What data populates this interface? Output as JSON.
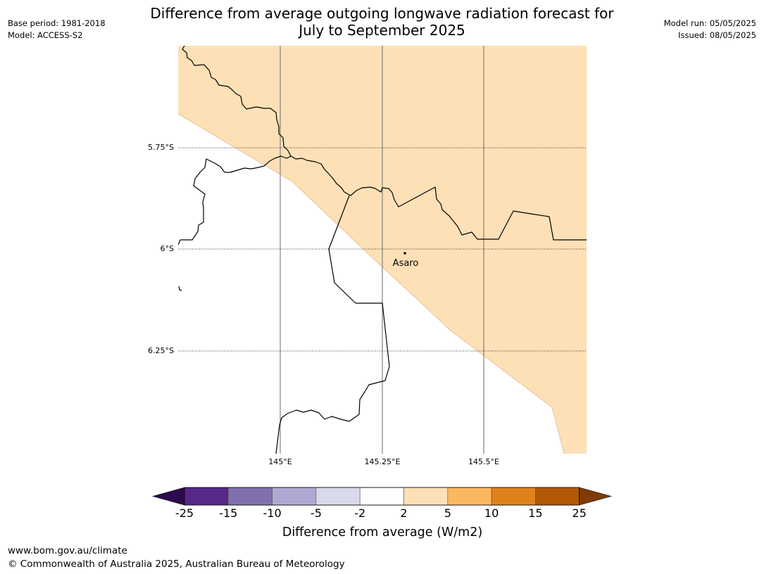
{
  "title": {
    "line1": "Difference from average outgoing longwave radiation forecast for",
    "line2": "July to September 2025"
  },
  "meta_left": {
    "base_period": "Base period: 1981-2018",
    "model": "Model: ACCESS-S2"
  },
  "meta_right": {
    "model_run": "Model run: 05/05/2025",
    "issued": "Issued: 08/05/2025"
  },
  "map": {
    "lat_labels": [
      "5.75°S",
      "6°S",
      "6.25°S"
    ],
    "lon_labels": [
      "145°E",
      "145.25°E",
      "145.5°E"
    ],
    "place": {
      "name": "Asaro"
    },
    "shade_category": "2 to 5",
    "colors": {
      "shade": "#fde0b6",
      "boundary": "#000000",
      "meridian": "#808080"
    }
  },
  "colorbar": {
    "title": "Difference from average (W/m2)",
    "tick_labels": [
      "-25",
      "-15",
      "-10",
      "-5",
      "-2",
      "2",
      "5",
      "10",
      "15",
      "25"
    ],
    "colors": {
      "below_min": "#2d0a4e",
      "bins": [
        "#562888",
        "#8270ae",
        "#b1a8d2",
        "#d9d9ec",
        "#ffffff",
        "#fde0b6",
        "#fcb861",
        "#e0821b",
        "#b35806"
      ],
      "above_max": "#7f3b08"
    }
  },
  "footer": {
    "url": "www.bom.gov.au/climate",
    "copyright": "© Commonwealth of Australia 2025, Australian Bureau of Meteorology"
  }
}
